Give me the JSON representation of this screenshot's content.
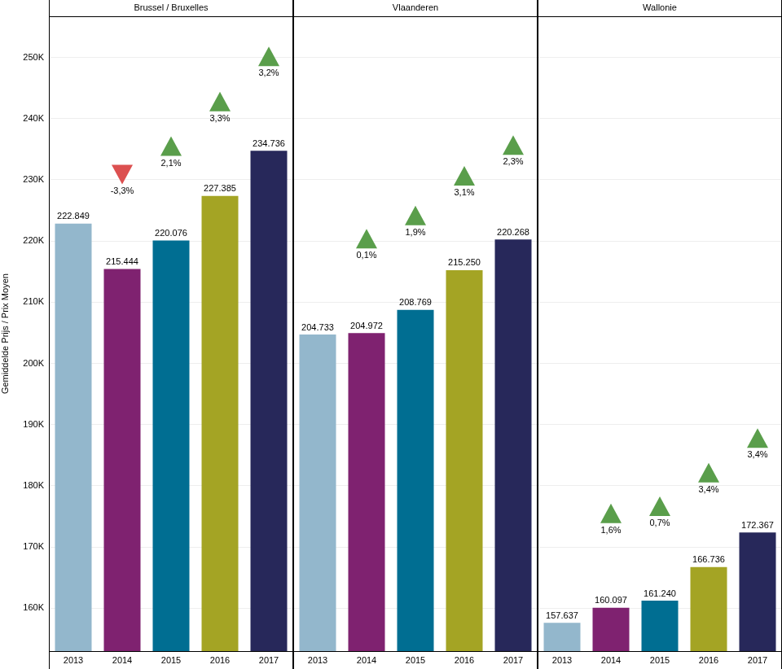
{
  "chart_data": [
    {
      "type": "bar",
      "title": "Brussel / Bruxelles",
      "y_label": "Gemiddelde Prijs / Prix Moyen",
      "categories": [
        "2013",
        "2014",
        "2015",
        "2016",
        "2017"
      ],
      "values": [
        222849,
        215444,
        220076,
        227385,
        234736
      ],
      "value_labels": [
        "222.849",
        "215.444",
        "220.076",
        "227.385",
        "234.736"
      ],
      "colors": [
        "#93b7cc",
        "#7f2270",
        "#006e92",
        "#a4a424",
        "#27285a"
      ],
      "change": {
        "values": [
          null,
          -3.3,
          2.1,
          3.3,
          3.2
        ],
        "value_labels": [
          null,
          "-3,3%",
          "2,1%",
          "3,3%",
          "3,2%"
        ],
        "colors": [
          null,
          "#dc5050",
          "#5a9e4b",
          "#5a9e4b",
          "#5a9e4b"
        ]
      },
      "ylim": [
        153000,
        256700
      ],
      "yticks": [
        {
          "value": 160000,
          "label": "160K"
        },
        {
          "value": 170000,
          "label": "170K"
        },
        {
          "value": 180000,
          "label": "180K"
        },
        {
          "value": 190000,
          "label": "190K"
        },
        {
          "value": 200000,
          "label": "200K"
        },
        {
          "value": 210000,
          "label": "210K"
        },
        {
          "value": 220000,
          "label": "220K"
        },
        {
          "value": 230000,
          "label": "230K"
        },
        {
          "value": 240000,
          "label": "240K"
        },
        {
          "value": 250000,
          "label": "250K"
        }
      ],
      "grid": true,
      "data_labels": true,
      "tick_labels": true
    },
    {
      "type": "bar",
      "title": "Vlaanderen",
      "categories": [
        "2013",
        "2014",
        "2015",
        "2016",
        "2017"
      ],
      "values": [
        204733,
        204972,
        208769,
        215250,
        220268
      ],
      "value_labels": [
        "204.733",
        "204.972",
        "208.769",
        "215.250",
        "220.268"
      ],
      "colors": [
        "#93b7cc",
        "#7f2270",
        "#006e92",
        "#a4a424",
        "#27285a"
      ],
      "change": {
        "values": [
          null,
          0.1,
          1.9,
          3.1,
          2.3
        ],
        "value_labels": [
          null,
          "0,1%",
          "1,9%",
          "3,1%",
          "2,3%"
        ],
        "colors": [
          null,
          "#5a9e4b",
          "#5a9e4b",
          "#5a9e4b",
          "#5a9e4b"
        ]
      },
      "ylim": [
        153000,
        256700
      ],
      "yticks": [
        {
          "value": 160000,
          "label": "160K"
        },
        {
          "value": 170000,
          "label": "170K"
        },
        {
          "value": 180000,
          "label": "180K"
        },
        {
          "value": 190000,
          "label": "190K"
        },
        {
          "value": 200000,
          "label": "200K"
        },
        {
          "value": 210000,
          "label": "210K"
        },
        {
          "value": 220000,
          "label": "220K"
        },
        {
          "value": 230000,
          "label": "230K"
        },
        {
          "value": 240000,
          "label": "240K"
        },
        {
          "value": 250000,
          "label": "250K"
        }
      ],
      "grid": true,
      "data_labels": true,
      "tick_labels": "x"
    },
    {
      "type": "bar",
      "title": "Wallonie",
      "categories": [
        "2013",
        "2014",
        "2015",
        "2016",
        "2017"
      ],
      "values": [
        157637,
        160097,
        161240,
        166736,
        172367
      ],
      "value_labels": [
        "157.637",
        "160.097",
        "161.240",
        "166.736",
        "172.367"
      ],
      "colors": [
        "#93b7cc",
        "#7f2270",
        "#006e92",
        "#a4a424",
        "#27285a"
      ],
      "change": {
        "values": [
          null,
          1.6,
          0.7,
          3.4,
          3.4
        ],
        "value_labels": [
          null,
          "1,6%",
          "0,7%",
          "3,4%",
          "3,4%"
        ],
        "colors": [
          null,
          "#5a9e4b",
          "#5a9e4b",
          "#5a9e4b",
          "#5a9e4b"
        ]
      },
      "ylim": [
        153000,
        256700
      ],
      "yticks": [
        {
          "value": 160000,
          "label": "160K"
        },
        {
          "value": 170000,
          "label": "170K"
        },
        {
          "value": 180000,
          "label": "180K"
        },
        {
          "value": 190000,
          "label": "190K"
        },
        {
          "value": 200000,
          "label": "200K"
        },
        {
          "value": 210000,
          "label": "210K"
        },
        {
          "value": 220000,
          "label": "220K"
        },
        {
          "value": 230000,
          "label": "230K"
        },
        {
          "value": 240000,
          "label": "240K"
        },
        {
          "value": 250000,
          "label": "250K"
        }
      ],
      "grid": true,
      "data_labels": true,
      "tick_labels": "x"
    }
  ]
}
